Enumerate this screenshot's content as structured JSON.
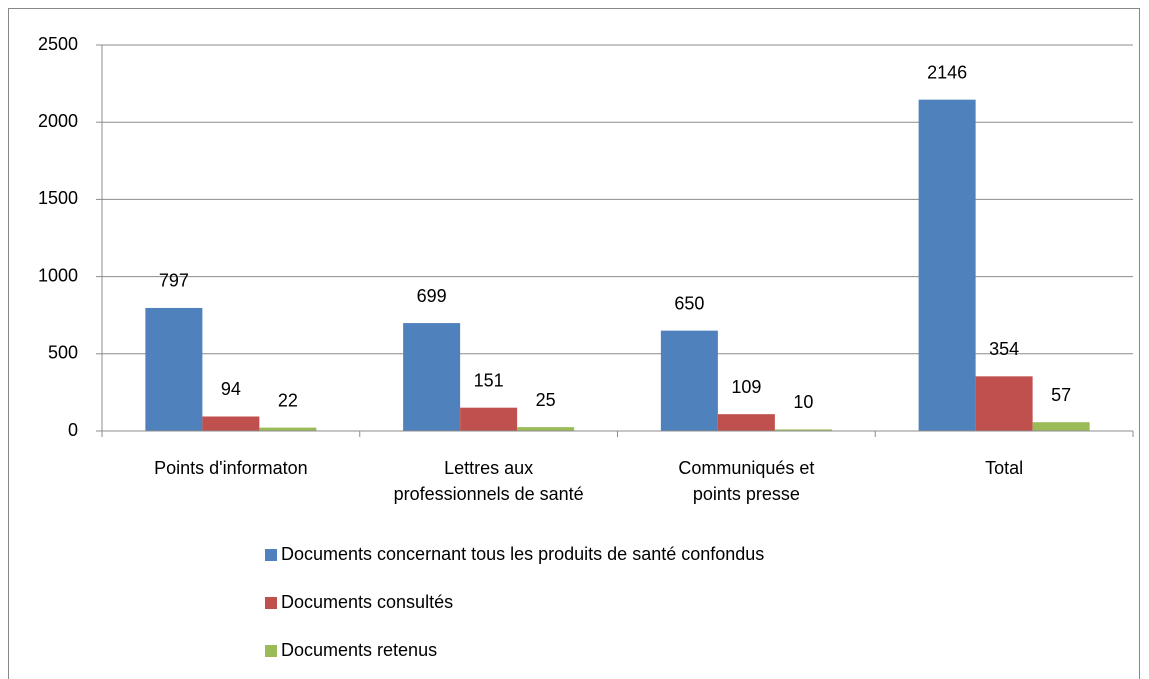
{
  "chart_data": {
    "type": "bar",
    "categories": [
      "Points d'informaton",
      "Lettres aux\nprofessionnels de santé",
      "Communiqués et\npoints presse",
      "Total"
    ],
    "series": [
      {
        "name": "Documents concernant tous les produits de santé confondus",
        "color": "#4f81bd",
        "values": [
          797,
          699,
          650,
          2146
        ]
      },
      {
        "name": "Documents consultés",
        "color": "#c0504d",
        "values": [
          94,
          151,
          109,
          354
        ]
      },
      {
        "name": "Documents retenus",
        "color": "#9bbb59",
        "values": [
          22,
          25,
          10,
          57
        ]
      }
    ],
    "ylim": [
      0,
      2500
    ],
    "yticks": [
      0,
      500,
      1000,
      1500,
      2000,
      2500
    ],
    "grid": true,
    "legend": "bottom"
  }
}
